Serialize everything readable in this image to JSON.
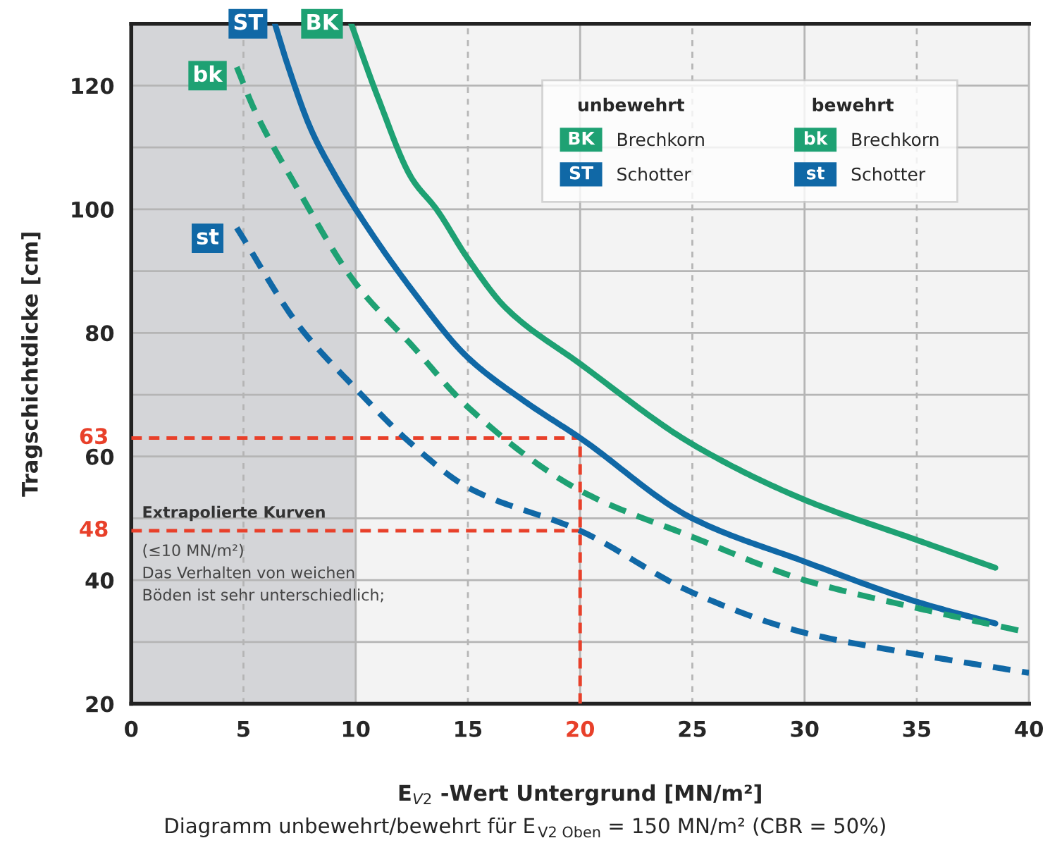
{
  "chart_data": {
    "type": "line",
    "xlabel": "E$_{V2}$ -Wert Untergrund [MN/m²]",
    "ylabel": "Tragschichtdicke [cm]",
    "xlim": [
      0,
      40
    ],
    "xticks": [
      0,
      5,
      10,
      15,
      20,
      25,
      30,
      35,
      40
    ],
    "ylim": [
      20,
      130
    ],
    "yticks": [
      20,
      {
        "value": 30,
        "label": null
      },
      40,
      {
        "value": 50,
        "label": null
      },
      60,
      {
        "value": 70,
        "label": null
      },
      80,
      {
        "value": 90,
        "label": null
      },
      100,
      {
        "value": 110,
        "label": null
      },
      120
    ],
    "grid": true,
    "legend": "top right",
    "series": [
      {
        "name": "Brechkorn",
        "color": "#1ea173",
        "line_style": "solid",
        "x": [
          9.8,
          11,
          12.5,
          13.6,
          15,
          16.7,
          20,
          25,
          30,
          35,
          38.5
        ],
        "values": [
          130,
          118,
          105,
          100,
          92,
          84,
          75,
          62,
          53,
          46.5,
          42
        ]
      },
      {
        "name": "Schotter",
        "color": "#1068a6",
        "line_style": "solid",
        "x": [
          6.4,
          7,
          8,
          9,
          10,
          12.5,
          15,
          17.5,
          20,
          25,
          30,
          35,
          38.5
        ],
        "values": [
          130,
          123,
          113,
          106,
          100,
          87,
          76,
          69,
          63,
          50,
          43,
          36.5,
          33
        ]
      },
      {
        "name": "Brechkorn",
        "color": "#1ea173",
        "line_style": "dashed",
        "x": [
          4.7,
          5.5,
          7.3,
          10,
          12.5,
          15,
          20,
          25,
          30,
          35,
          40
        ],
        "values": [
          123,
          116,
          104,
          88,
          78,
          68,
          54.5,
          47,
          40,
          35.5,
          31.5
        ]
      },
      {
        "name": "Schotter",
        "color": "#1068a6",
        "line_style": "dashed",
        "x": [
          4.7,
          7.5,
          10,
          12.5,
          15,
          20,
          25,
          30,
          35,
          40
        ],
        "values": [
          97,
          81,
          71,
          62,
          55,
          48,
          38,
          31.5,
          28,
          25
        ]
      }
    ],
    "ref_lines": [
      {
        "axis": "y",
        "value": 63,
        "label": "63",
        "color": "#e8402a",
        "line_style": "dashed"
      },
      {
        "axis": "y",
        "value": 48,
        "label": "48",
        "color": "#e8402a",
        "line_style": "dashed"
      },
      {
        "axis": "x",
        "value": 20,
        "color": "#e8402a",
        "line_style": "dashed"
      }
    ],
    "bands": [
      {
        "axis": "x",
        "from": 0,
        "to": 10,
        "color": "#d4d5d8"
      }
    ],
    "annotations": [
      {
        "text": "BK",
        "x": 8.5,
        "y": 130
      },
      {
        "text": "ST",
        "x": 5.2,
        "y": 130
      },
      {
        "text": "bk",
        "x": 3.4,
        "y": 121.6
      },
      {
        "text": "st",
        "x": 3.4,
        "y": 95.3
      },
      "unbewehrt",
      "bewehrt",
      "Extrapolierte Kurven",
      "(≤10 MN/m²)\nDas Verhalten von weichen\nBöden ist sehr unterschiedlich;",
      "Diagramm unbewehrt/bewehrt für E$_{V2 Oben}$ = 150 MN/m² (CBR = 50%)"
    ]
  }
}
